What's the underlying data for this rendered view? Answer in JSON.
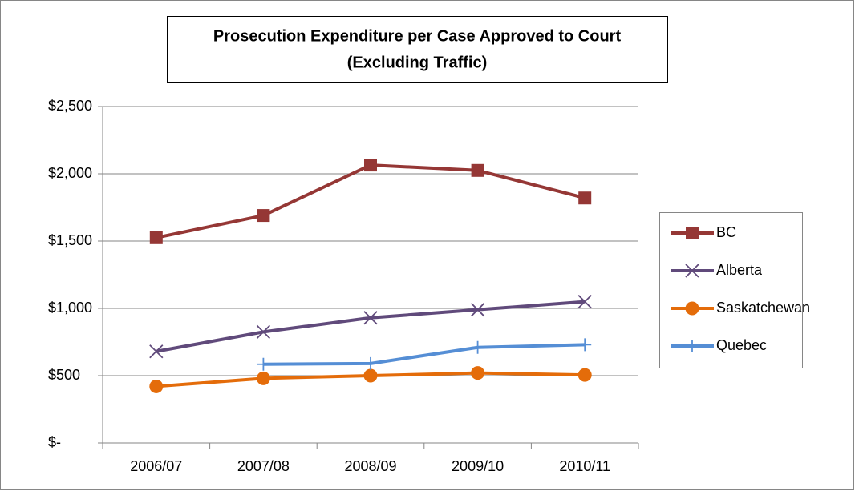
{
  "chart_data": {
    "type": "line",
    "title": "Prosecution Expenditure per Case Approved to Court",
    "subtitle": "(Excluding Traffic)",
    "categories": [
      "2006/07",
      "2007/08",
      "2008/09",
      "2009/10",
      "2010/11"
    ],
    "series": [
      {
        "name": "BC",
        "color": "#953735",
        "marker": "square",
        "values": [
          1525,
          1690,
          2065,
          2025,
          1820
        ]
      },
      {
        "name": "Alberta",
        "color": "#604a7b",
        "marker": "x",
        "values": [
          680,
          825,
          930,
          990,
          1050
        ]
      },
      {
        "name": "Saskatchewan",
        "color": "#e46c0a",
        "marker": "circle",
        "values": [
          420,
          480,
          500,
          520,
          505
        ]
      },
      {
        "name": "Quebec",
        "color": "#558ed5",
        "marker": "plus",
        "values": [
          null,
          585,
          590,
          710,
          730
        ]
      }
    ],
    "ylim": [
      0,
      2500
    ],
    "yticks": [
      {
        "value": 0,
        "label": "$-"
      },
      {
        "value": 500,
        "label": "$500"
      },
      {
        "value": 1000,
        "label": "$1,000"
      },
      {
        "value": 1500,
        "label": "$1,500"
      },
      {
        "value": 2000,
        "label": "$2,000"
      },
      {
        "value": 2500,
        "label": "$2,500"
      }
    ],
    "grid": true,
    "legend": "right"
  }
}
